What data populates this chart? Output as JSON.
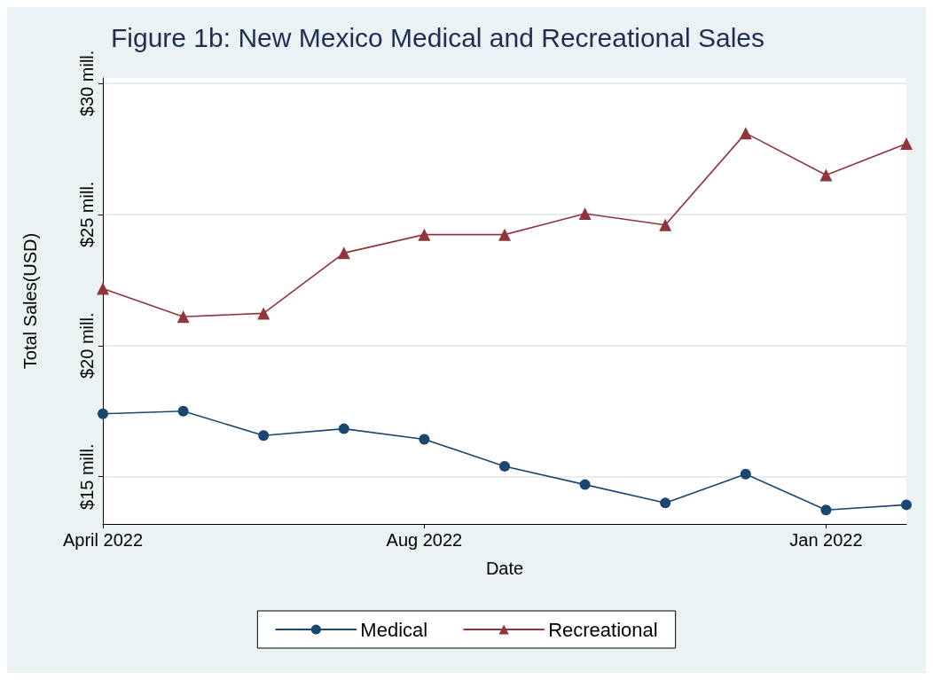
{
  "chart_data": {
    "type": "line",
    "title": "Figure 1b: New Mexico Medical and Recreational Sales",
    "xlabel": "Date",
    "ylabel": "Total Sales(USD)",
    "categories": [
      "April 2022",
      null,
      null,
      null,
      "Aug 2022",
      null,
      null,
      null,
      null,
      "Jan 2022",
      null
    ],
    "series": [
      {
        "name": "Medical",
        "color": "#1a476f",
        "marker": "circle",
        "values": [
          17.4,
          17.5,
          16.57,
          16.83,
          16.43,
          15.4,
          14.7,
          14.0,
          15.1,
          13.73,
          13.93
        ]
      },
      {
        "name": "Recreational",
        "color": "#90353b",
        "marker": "triangle",
        "values": [
          22.17,
          21.1,
          21.23,
          23.53,
          24.23,
          24.23,
          25.03,
          24.6,
          28.1,
          26.5,
          27.7
        ]
      }
    ],
    "ylim": [
      13.2,
      30.2
    ],
    "yticks": [
      {
        "value": 15,
        "label": "$15 mill."
      },
      {
        "value": 20,
        "label": "$20 mill."
      },
      {
        "value": 25,
        "label": "$25 mill."
      },
      {
        "value": 30,
        "label": "$30 mill."
      }
    ],
    "grid": "y",
    "legend": "bottom",
    "line_style": "solid"
  }
}
